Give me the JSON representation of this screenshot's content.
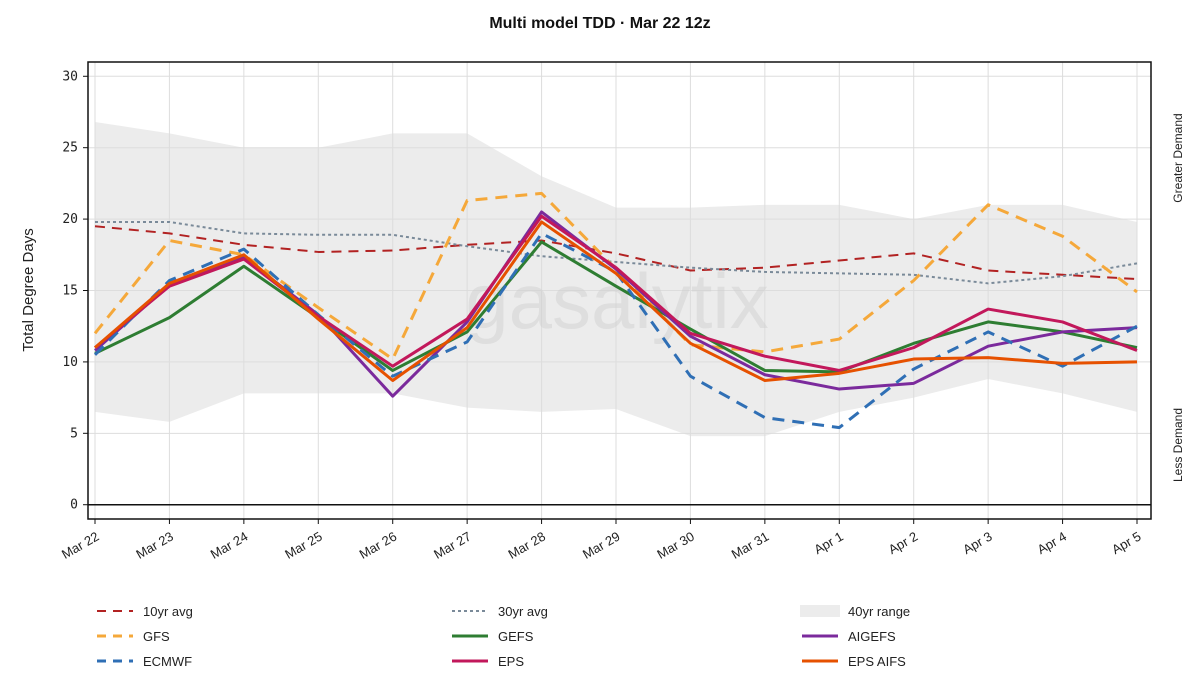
{
  "chart_data": {
    "type": "line",
    "title": "Multi model TDD · Mar 22 12z",
    "xlabel": "",
    "ylabel": "Total Degree Days",
    "right_labels": {
      "top": "Greater Demand",
      "bottom": "Less Demand"
    },
    "watermark": "gasalytix",
    "categories": [
      "Mar 22",
      "Mar 23",
      "Mar 24",
      "Mar 25",
      "Mar 26",
      "Mar 27",
      "Mar 28",
      "Mar 29",
      "Mar 30",
      "Mar 31",
      "Apr 1",
      "Apr 2",
      "Apr 3",
      "Apr 4",
      "Apr 5"
    ],
    "ylim": [
      -1,
      31
    ],
    "yticks": [
      0,
      5,
      10,
      15,
      20,
      25,
      30
    ],
    "range_band": {
      "name": "40yr range",
      "color": "#ececec",
      "upper": [
        26.8,
        26.0,
        25.0,
        25.0,
        26.0,
        26.0,
        23.0,
        20.8,
        20.8,
        21.0,
        21.0,
        20.0,
        21.0,
        21.0,
        19.8
      ],
      "lower": [
        6.5,
        5.8,
        7.8,
        7.8,
        7.8,
        6.8,
        6.5,
        6.7,
        4.8,
        4.8,
        6.5,
        7.5,
        8.8,
        7.8,
        6.5
      ]
    },
    "series": [
      {
        "name": "10yr avg",
        "color": "#b22222",
        "dash": "10,7",
        "width": 2,
        "values": [
          19.5,
          19.0,
          18.2,
          17.7,
          17.8,
          18.2,
          18.5,
          17.6,
          16.4,
          16.6,
          17.1,
          17.6,
          16.4,
          16.1,
          15.8
        ]
      },
      {
        "name": "30yr avg",
        "color": "#7a8a99",
        "dash": "3,3",
        "width": 2,
        "values": [
          19.8,
          19.8,
          19.0,
          18.9,
          18.9,
          18.1,
          17.4,
          17.0,
          16.6,
          16.3,
          16.2,
          16.1,
          15.5,
          16.0,
          16.9
        ]
      },
      {
        "name": "GFS",
        "color": "#f5a83a",
        "dash": "12,8",
        "width": 3,
        "values": [
          12.0,
          18.5,
          17.5,
          13.8,
          10.2,
          21.3,
          21.8,
          16.5,
          11.2,
          10.7,
          11.6,
          15.7,
          21.0,
          18.8,
          14.9
        ]
      },
      {
        "name": "GEFS",
        "color": "#2e7d32",
        "dash": "",
        "width": 3,
        "values": [
          10.6,
          13.1,
          16.7,
          13.1,
          9.4,
          12.1,
          18.4,
          15.3,
          12.3,
          9.4,
          9.3,
          11.3,
          12.8,
          12.1,
          11.0
        ]
      },
      {
        "name": "AIGEFS",
        "color": "#7b2a9c",
        "dash": "",
        "width": 3,
        "values": [
          10.8,
          15.4,
          17.3,
          13.3,
          7.6,
          12.8,
          20.5,
          16.5,
          11.8,
          9.1,
          8.1,
          8.5,
          11.1,
          12.1,
          12.4
        ]
      },
      {
        "name": "ECMWF",
        "color": "#2f6fb5",
        "dash": "12,8",
        "width": 3,
        "values": [
          10.5,
          15.7,
          17.9,
          13.3,
          9.0,
          11.4,
          19.0,
          16.3,
          9.0,
          6.1,
          5.4,
          9.5,
          12.1,
          9.7,
          12.5
        ]
      },
      {
        "name": "EPS",
        "color": "#c2185b",
        "dash": "",
        "width": 3,
        "values": [
          11.0,
          15.3,
          17.2,
          13.2,
          9.7,
          13.0,
          20.2,
          16.6,
          12.0,
          10.4,
          9.4,
          11.0,
          13.7,
          12.8,
          10.8
        ]
      },
      {
        "name": "EPS AIFS",
        "color": "#e65100",
        "dash": "",
        "width": 3,
        "values": [
          11.0,
          15.5,
          17.5,
          13.0,
          8.7,
          12.4,
          19.8,
          16.2,
          11.3,
          8.7,
          9.2,
          10.2,
          10.3,
          9.9,
          10.0
        ]
      }
    ],
    "legend": {
      "columns": [
        [
          "10yr avg",
          "GFS",
          "ECMWF"
        ],
        [
          "30yr avg",
          "GEFS",
          "EPS"
        ],
        [
          "40yr range",
          "AIGEFS",
          "EPS AIFS"
        ]
      ]
    }
  }
}
